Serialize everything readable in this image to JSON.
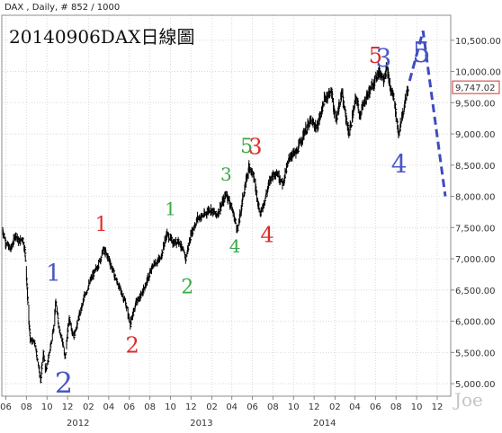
{
  "chart_data": {
    "type": "line",
    "header": "DAX , Daily, # 852 / 1000",
    "title": "20140906DAX日線圖",
    "watermark": "Joe",
    "ylim": [
      4800,
      10900
    ],
    "y_ticks": [
      5000,
      5500,
      6000,
      6500,
      7000,
      7500,
      8000,
      8500,
      9000,
      9500,
      10000,
      10500
    ],
    "y_tick_labels": [
      "5,000.00",
      "5,500.00",
      "6,000.00",
      "6,500.00",
      "7,000.00",
      "7,500.00",
      "8,000.00",
      "8,500.00",
      "9,000.00",
      "9,500.00",
      "10,000.00",
      "10,500.00"
    ],
    "last_value": 9747.02,
    "last_value_label": "9,747.02",
    "x_start": "2011-05-20",
    "x_end": "2015-01-10",
    "x_ticks": [
      {
        "date": "2011-06-01",
        "label": "06"
      },
      {
        "date": "2011-08-01",
        "label": "08"
      },
      {
        "date": "2011-10-01",
        "label": "10"
      },
      {
        "date": "2011-12-01",
        "label": "12"
      },
      {
        "date": "2012-02-01",
        "label": "02"
      },
      {
        "date": "2012-04-01",
        "label": "04"
      },
      {
        "date": "2012-06-01",
        "label": "06"
      },
      {
        "date": "2012-08-01",
        "label": "08"
      },
      {
        "date": "2012-10-01",
        "label": "10"
      },
      {
        "date": "2012-12-01",
        "label": "12"
      },
      {
        "date": "2013-02-01",
        "label": "02"
      },
      {
        "date": "2013-04-01",
        "label": "04"
      },
      {
        "date": "2013-06-01",
        "label": "06"
      },
      {
        "date": "2013-08-01",
        "label": "08"
      },
      {
        "date": "2013-10-01",
        "label": "10"
      },
      {
        "date": "2013-12-01",
        "label": "12"
      },
      {
        "date": "2014-02-01",
        "label": "02"
      },
      {
        "date": "2014-04-01",
        "label": "04"
      },
      {
        "date": "2014-06-01",
        "label": "06"
      },
      {
        "date": "2014-08-01",
        "label": "08"
      },
      {
        "date": "2014-10-01",
        "label": "10"
      },
      {
        "date": "2014-12-01",
        "label": "12"
      }
    ],
    "year_labels": [
      {
        "date": "2012-01-01",
        "label": "2012"
      },
      {
        "date": "2013-01-01",
        "label": "2013"
      },
      {
        "date": "2014-01-01",
        "label": "2014"
      }
    ],
    "series": [
      {
        "points": [
          [
            "2011-05-20",
            7500
          ],
          [
            "2011-06-01",
            7250
          ],
          [
            "2011-06-15",
            7150
          ],
          [
            "2011-07-01",
            7400
          ],
          [
            "2011-07-10",
            7250
          ],
          [
            "2011-07-20",
            7350
          ],
          [
            "2011-07-28",
            7100
          ],
          [
            "2011-08-08",
            6000
          ],
          [
            "2011-08-12",
            5700
          ],
          [
            "2011-08-25",
            5650
          ],
          [
            "2011-09-05",
            5300
          ],
          [
            "2011-09-12",
            5050
          ],
          [
            "2011-09-20",
            5500
          ],
          [
            "2011-09-26",
            5200
          ],
          [
            "2011-10-05",
            5400
          ],
          [
            "2011-10-20",
            5900
          ],
          [
            "2011-10-27",
            6300
          ],
          [
            "2011-11-05",
            5900
          ],
          [
            "2011-11-15",
            5700
          ],
          [
            "2011-11-23",
            5400
          ],
          [
            "2011-12-05",
            6050
          ],
          [
            "2011-12-19",
            5750
          ],
          [
            "2012-01-05",
            6100
          ],
          [
            "2012-01-20",
            6400
          ],
          [
            "2012-02-10",
            6700
          ],
          [
            "2012-03-01",
            6900
          ],
          [
            "2012-03-16",
            7150
          ],
          [
            "2012-04-01",
            7000
          ],
          [
            "2012-04-20",
            6700
          ],
          [
            "2012-05-05",
            6500
          ],
          [
            "2012-05-20",
            6300
          ],
          [
            "2012-06-04",
            5950
          ],
          [
            "2012-06-20",
            6300
          ],
          [
            "2012-07-05",
            6400
          ],
          [
            "2012-07-20",
            6600
          ],
          [
            "2012-08-10",
            6900
          ],
          [
            "2012-09-01",
            7000
          ],
          [
            "2012-09-20",
            7400
          ],
          [
            "2012-10-10",
            7250
          ],
          [
            "2012-10-25",
            7300
          ],
          [
            "2012-11-15",
            7000
          ],
          [
            "2012-12-01",
            7400
          ],
          [
            "2012-12-20",
            7650
          ],
          [
            "2013-01-10",
            7700
          ],
          [
            "2013-01-25",
            7800
          ],
          [
            "2013-02-15",
            7700
          ],
          [
            "2013-03-05",
            7900
          ],
          [
            "2013-03-15",
            8050
          ],
          [
            "2013-04-01",
            7800
          ],
          [
            "2013-04-18",
            7450
          ],
          [
            "2013-05-01",
            7900
          ],
          [
            "2013-05-22",
            8500
          ],
          [
            "2013-06-05",
            8300
          ],
          [
            "2013-06-24",
            7700
          ],
          [
            "2013-07-10",
            8000
          ],
          [
            "2013-07-25",
            8300
          ],
          [
            "2013-08-10",
            8400
          ],
          [
            "2013-08-30",
            8200
          ],
          [
            "2013-09-20",
            8650
          ],
          [
            "2013-10-10",
            8700
          ],
          [
            "2013-10-30",
            9000
          ],
          [
            "2013-11-20",
            9200
          ],
          [
            "2013-12-10",
            9100
          ],
          [
            "2013-12-31",
            9550
          ],
          [
            "2014-01-20",
            9700
          ],
          [
            "2014-02-03",
            9200
          ],
          [
            "2014-02-20",
            9650
          ],
          [
            "2014-03-14",
            9000
          ],
          [
            "2014-04-05",
            9600
          ],
          [
            "2014-04-15",
            9300
          ],
          [
            "2014-05-05",
            9600
          ],
          [
            "2014-05-25",
            9800
          ],
          [
            "2014-06-10",
            10000
          ],
          [
            "2014-06-25",
            9900
          ],
          [
            "2014-07-05",
            10050
          ],
          [
            "2014-07-15",
            9700
          ],
          [
            "2014-07-25",
            9600
          ],
          [
            "2014-08-08",
            9000
          ],
          [
            "2014-08-20",
            9300
          ],
          [
            "2014-09-05",
            9747
          ]
        ]
      }
    ],
    "projection": [
      [
        "2014-09-10",
        9850
      ],
      [
        "2014-10-20",
        10650
      ],
      [
        "2014-11-05",
        10000
      ],
      [
        "2014-12-25",
        8000
      ]
    ],
    "wave_labels": [
      {
        "text": "1",
        "date": "2011-10-20",
        "y": 6650,
        "color": "#4a56c4",
        "size": 26
      },
      {
        "text": "2",
        "date": "2011-11-20",
        "y": 4850,
        "color": "#4a56c4",
        "size": 32
      },
      {
        "text": "1",
        "date": "2012-03-10",
        "y": 7450,
        "color": "#dd2b2b",
        "size": 22
      },
      {
        "text": "2",
        "date": "2012-06-10",
        "y": 5500,
        "color": "#dd2b2b",
        "size": 24
      },
      {
        "text": "1",
        "date": "2012-10-01",
        "y": 7700,
        "color": "#3aa847",
        "size": 20
      },
      {
        "text": "2",
        "date": "2012-11-20",
        "y": 6450,
        "color": "#3aa847",
        "size": 22
      },
      {
        "text": "3",
        "date": "2013-03-15",
        "y": 8250,
        "color": "#3aa847",
        "size": 20
      },
      {
        "text": "4",
        "date": "2013-04-10",
        "y": 7100,
        "color": "#3aa847",
        "size": 20
      },
      {
        "text": "5",
        "date": "2013-05-15",
        "y": 8700,
        "color": "#3aa847",
        "size": 22
      },
      {
        "text": "3",
        "date": "2013-06-10",
        "y": 8680,
        "color": "#dd2b2b",
        "size": 24
      },
      {
        "text": "4",
        "date": "2013-07-15",
        "y": 7270,
        "color": "#dd2b2b",
        "size": 24
      },
      {
        "text": "5",
        "date": "2014-06-01",
        "y": 10140,
        "color": "#dd2b2b",
        "size": 24
      },
      {
        "text": "3",
        "date": "2014-06-25",
        "y": 10080,
        "color": "#4a56c4",
        "size": 28
      },
      {
        "text": "4",
        "date": "2014-08-10",
        "y": 8380,
        "color": "#4a56c4",
        "size": 28
      },
      {
        "text": "5",
        "date": "2014-10-15",
        "y": 10150,
        "color": "#4a56c4",
        "size": 32
      }
    ],
    "colors": {
      "price": "#000000",
      "projection": "#3e4bc0",
      "last_value_box": "#d23030",
      "grid": "#d9d9d9"
    }
  }
}
